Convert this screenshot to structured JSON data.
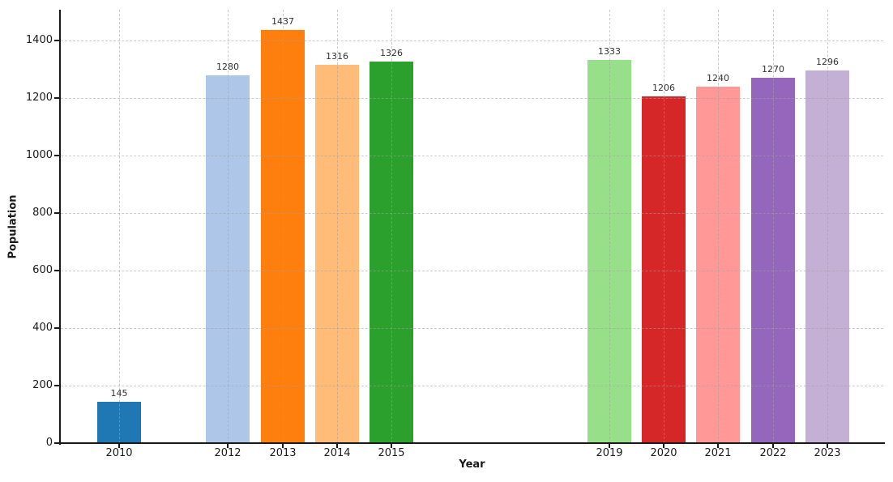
{
  "figure": {
    "background": "#ffffff"
  },
  "chart_data": {
    "type": "bar",
    "title": "",
    "xlabel": "Year",
    "ylabel": "Population",
    "categories": [
      "2010",
      "2012",
      "2013",
      "2014",
      "2015",
      "2019",
      "2020",
      "2021",
      "2022",
      "2023"
    ],
    "x_numeric": [
      2010,
      2012,
      2013,
      2014,
      2015,
      2019,
      2020,
      2021,
      2022,
      2023
    ],
    "values": [
      145,
      1280,
      1437,
      1316,
      1326,
      1333,
      1206,
      1240,
      1270,
      1296
    ],
    "bar_colors": [
      "#1f77b4",
      "#aec7e8",
      "#ff7f0e",
      "#ffbb78",
      "#2ca02c",
      "#98df8a",
      "#d62728",
      "#ff9896",
      "#9467bd",
      "#c5b0d5"
    ],
    "yticks": [
      0,
      200,
      400,
      600,
      800,
      1000,
      1200,
      1400
    ],
    "ylim": [
      0,
      1507
    ],
    "xlim": [
      2008.93,
      2024.03
    ],
    "grid": {
      "style": "dashed",
      "axes": "both",
      "on_top_of_bars": true,
      "color": "#c8c8c8"
    },
    "legend": {
      "visible": false
    },
    "spine_color": "#1a1a1a",
    "tick_label_color": "#1a1a1a",
    "value_label_color": "#333333"
  }
}
